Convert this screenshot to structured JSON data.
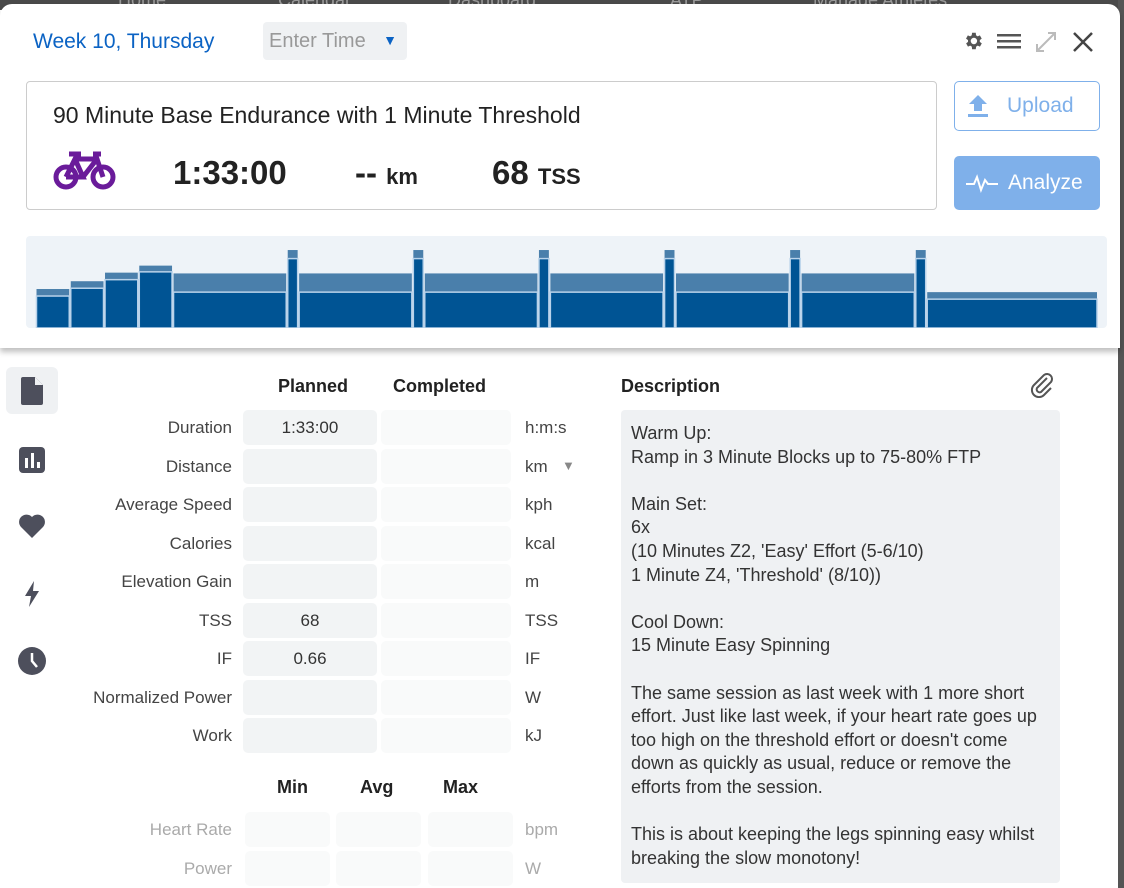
{
  "background_nav": [
    "Home",
    "Calendar",
    "Dashboard",
    "ATP",
    "Manage Athletes"
  ],
  "header": {
    "title": "Week 10, Thursday",
    "time_placeholder": "Enter Time",
    "icons": [
      "gear-icon",
      "menu-icon",
      "expand-icon",
      "close-icon"
    ]
  },
  "workout": {
    "title": "90 Minute Base Endurance with 1 Minute Threshold",
    "sport_icon": "bike-icon",
    "sport_color": "#6a1b9a",
    "duration": "1:33:00",
    "distance": "--",
    "distance_unit": "km",
    "tss": "68",
    "tss_unit": "TSS"
  },
  "buttons": {
    "upload": "Upload",
    "analyze": "Analyze"
  },
  "workout_graph": {
    "unit": "%FTP",
    "ymax": 118,
    "segments": [
      {
        "minutes": 3,
        "low": 41,
        "high": 50
      },
      {
        "minutes": 3,
        "low": 51,
        "high": 60
      },
      {
        "minutes": 3,
        "low": 62,
        "high": 71
      },
      {
        "minutes": 3,
        "low": 72,
        "high": 80
      },
      {
        "minutes": 10,
        "low": 46,
        "high": 70
      },
      {
        "minutes": 1,
        "low": 89,
        "high": 100
      },
      {
        "minutes": 10,
        "low": 46,
        "high": 70
      },
      {
        "minutes": 1,
        "low": 89,
        "high": 100
      },
      {
        "minutes": 10,
        "low": 46,
        "high": 70
      },
      {
        "minutes": 1,
        "low": 89,
        "high": 100
      },
      {
        "minutes": 10,
        "low": 46,
        "high": 70
      },
      {
        "minutes": 1,
        "low": 89,
        "high": 100
      },
      {
        "minutes": 10,
        "low": 46,
        "high": 70
      },
      {
        "minutes": 1,
        "low": 89,
        "high": 100
      },
      {
        "minutes": 10,
        "low": 46,
        "high": 70
      },
      {
        "minutes": 1,
        "low": 89,
        "high": 100
      },
      {
        "minutes": 15,
        "low": 37,
        "high": 46
      }
    ],
    "colors": {
      "low": "#005494",
      "high": "#4a7fab",
      "bg": "#eef3f8"
    }
  },
  "sidebar": [
    {
      "icon": "document-icon",
      "active": true
    },
    {
      "icon": "chart-icon"
    },
    {
      "icon": "heart-icon"
    },
    {
      "icon": "lightning-icon"
    },
    {
      "icon": "clock-icon"
    }
  ],
  "table": {
    "planned_header": "Planned",
    "completed_header": "Completed",
    "rows": [
      {
        "label": "Duration",
        "planned": "1:33:00",
        "completed": "",
        "unit": "h:m:s"
      },
      {
        "label": "Distance",
        "planned": "",
        "completed": "",
        "unit": "km"
      },
      {
        "label": "Average Speed",
        "planned": "",
        "completed": "",
        "unit": "kph"
      },
      {
        "label": "Calories",
        "planned": "",
        "completed": "",
        "unit": "kcal"
      },
      {
        "label": "Elevation Gain",
        "planned": "",
        "completed": "",
        "unit": "m"
      },
      {
        "label": "TSS",
        "planned": "68",
        "completed": "",
        "unit": "TSS"
      },
      {
        "label": "IF",
        "planned": "0.66",
        "completed": "",
        "unit": "IF"
      },
      {
        "label": "Normalized Power",
        "planned": "",
        "completed": "",
        "unit": "W"
      },
      {
        "label": "Work",
        "planned": "",
        "completed": "",
        "unit": "kJ"
      }
    ],
    "mma_headers": [
      "Min",
      "Avg",
      "Max"
    ],
    "mma_rows": [
      {
        "label": "Heart Rate",
        "unit": "bpm"
      },
      {
        "label": "Power",
        "unit": "W"
      }
    ]
  },
  "description": {
    "header": "Description",
    "text": "Warm Up:\nRamp in 3 Minute Blocks up to 75-80% FTP\n\nMain Set:\n6x\n(10 Minutes Z2, 'Easy' Effort (5-6/10)\n1 Minute Z4, 'Threshold' (8/10))\n\nCool Down:\n15 Minute Easy Spinning\n\nThe same session as last week with 1 more short effort. Just like last week, if your heart rate goes up too high on the threshold effort or doesn't come down as quickly as usual, reduce or remove the efforts from the session.\n\nThis is about keeping the legs spinning easy whilst breaking the slow monotony!"
  }
}
